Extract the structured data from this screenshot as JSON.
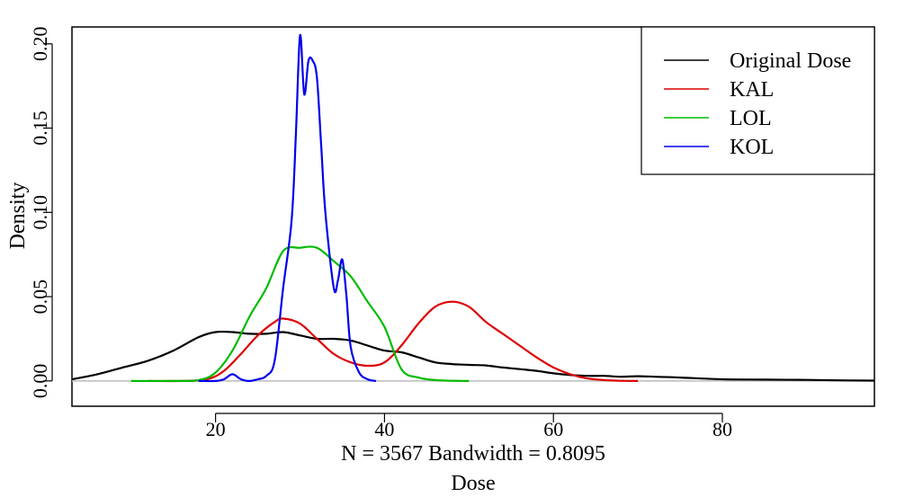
{
  "chart_data": {
    "type": "line",
    "title": "",
    "xlabel": "Dose",
    "subtitle": "N = 3567   Bandwidth = 0.8095",
    "ylabel": "Density",
    "xlim": [
      3,
      98
    ],
    "ylim": [
      -0.015,
      0.21
    ],
    "xticks": [
      "20",
      "40",
      "60",
      "80"
    ],
    "yticks": [
      "0.00",
      "0.05",
      "0.10",
      "0.15",
      "0.20"
    ],
    "grid": false,
    "legend_position": "top-right",
    "baseline": 0,
    "series": [
      {
        "name": "Original Dose",
        "color": "#000000",
        "x": [
          3,
          6,
          9,
          12,
          15,
          18,
          20,
          22,
          24,
          26,
          28,
          30,
          32,
          34,
          36,
          38,
          40,
          42,
          44,
          46,
          48,
          50,
          52,
          54,
          56,
          58,
          60,
          62,
          64,
          66,
          68,
          70,
          72,
          75,
          80,
          85,
          90,
          95,
          98
        ],
        "values": [
          0.001,
          0.004,
          0.008,
          0.012,
          0.018,
          0.026,
          0.029,
          0.029,
          0.028,
          0.028,
          0.029,
          0.027,
          0.025,
          0.025,
          0.024,
          0.021,
          0.018,
          0.017,
          0.014,
          0.011,
          0.01,
          0.0095,
          0.0092,
          0.008,
          0.007,
          0.006,
          0.0045,
          0.0035,
          0.003,
          0.003,
          0.0025,
          0.0028,
          0.0025,
          0.002,
          0.001,
          0.0008,
          0.0006,
          0.0003,
          0.0002
        ]
      },
      {
        "name": "KAL",
        "color": "#dd0000",
        "x": [
          12,
          16,
          19,
          21,
          23,
          25,
          27,
          28,
          30,
          32,
          34,
          36,
          38,
          40,
          42,
          44,
          46,
          48,
          50,
          52,
          54,
          56,
          58,
          60,
          62,
          64,
          66,
          68,
          70
        ],
        "values": [
          0,
          0,
          0.001,
          0.006,
          0.016,
          0.027,
          0.035,
          0.037,
          0.034,
          0.025,
          0.016,
          0.011,
          0.009,
          0.011,
          0.021,
          0.034,
          0.044,
          0.047,
          0.044,
          0.035,
          0.028,
          0.021,
          0.014,
          0.008,
          0.004,
          0.0015,
          0.0005,
          0.0001,
          0
        ]
      },
      {
        "name": "LOL",
        "color": "#00bb00",
        "x": [
          10,
          15,
          18,
          20,
          22,
          24,
          26,
          28,
          30,
          32,
          34,
          36,
          38,
          40,
          42,
          44,
          46,
          48,
          50
        ],
        "values": [
          0,
          0,
          0.0005,
          0.005,
          0.018,
          0.038,
          0.055,
          0.077,
          0.079,
          0.079,
          0.071,
          0.062,
          0.047,
          0.032,
          0.007,
          0.002,
          0.0005,
          0.0001,
          0
        ]
      },
      {
        "name": "KOL",
        "color": "#0000ee",
        "x": [
          18,
          20,
          21,
          22,
          23,
          24,
          25,
          26,
          27,
          28,
          29,
          29.5,
          30,
          30.5,
          31,
          31.5,
          32,
          32.5,
          33,
          34,
          34.5,
          35,
          35.5,
          36,
          37,
          38,
          39
        ],
        "values": [
          0,
          0,
          0.001,
          0.004,
          0.001,
          0,
          0.001,
          0.003,
          0.012,
          0.055,
          0.095,
          0.145,
          0.205,
          0.17,
          0.19,
          0.19,
          0.18,
          0.14,
          0.1,
          0.055,
          0.06,
          0.072,
          0.05,
          0.02,
          0.005,
          0.001,
          0
        ]
      }
    ]
  }
}
